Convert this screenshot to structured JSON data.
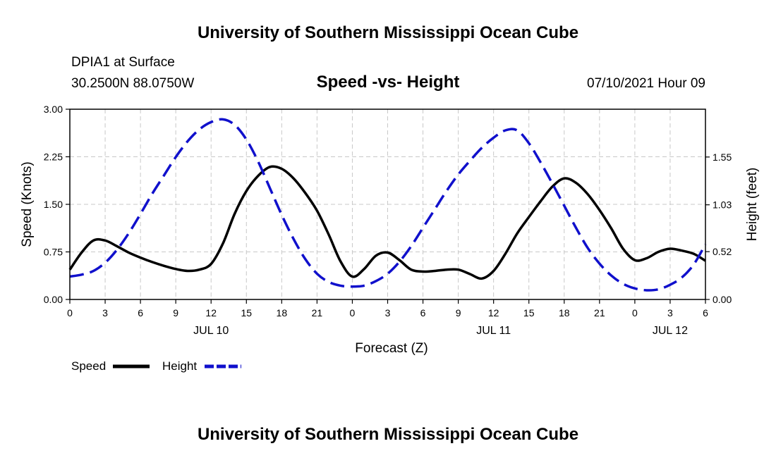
{
  "header": {
    "top_title": "University of Southern Mississippi Ocean Cube",
    "bottom_title": "University of Southern Mississippi Ocean Cube",
    "station": "DPIA1 at Surface",
    "coords": "30.2500N  88.0750W",
    "chart_title": "Speed -vs- Height",
    "datetime": "07/10/2021 Hour 09"
  },
  "chart_data": {
    "type": "line",
    "title": "Speed -vs- Height",
    "xlabel": "Forecast (Z)",
    "ylabel": "Speed (Knots)",
    "y2label": "Height (feet)",
    "xlim": [
      0,
      54
    ],
    "ylim": [
      0,
      3
    ],
    "y2lim": [
      0,
      2.07
    ],
    "x_ticks": [
      0,
      3,
      6,
      9,
      12,
      15,
      18,
      21,
      24,
      27,
      30,
      33,
      36,
      39,
      42,
      45,
      48,
      51,
      54
    ],
    "x_tick_labels": [
      "0",
      "3",
      "6",
      "9",
      "12",
      "15",
      "18",
      "21",
      "0",
      "3",
      "6",
      "9",
      "12",
      "15",
      "18",
      "21",
      "0",
      "3",
      "6"
    ],
    "y_ticks": [
      0,
      0.75,
      1.5,
      2.25,
      3.0
    ],
    "y_tick_labels": [
      "0.00",
      "0.75",
      "1.50",
      "2.25",
      "3.00"
    ],
    "y2_ticks": [
      0,
      0.52,
      1.03,
      1.55
    ],
    "y2_tick_labels": [
      "0.00",
      "0.52",
      "1.03",
      "1.55"
    ],
    "date_labels": [
      {
        "x": 12,
        "label": "JUL 10"
      },
      {
        "x": 36,
        "label": "JUL 11"
      },
      {
        "x": 51,
        "label": "JUL 12"
      }
    ],
    "grid": true,
    "legend": {
      "position": "bottom-left"
    },
    "series": [
      {
        "name": "Speed",
        "axis": "left",
        "color": "#000000",
        "style": "solid",
        "x": [
          0,
          1,
          2,
          3,
          4,
          5,
          6,
          7,
          8,
          9,
          10,
          11,
          12,
          13,
          14,
          15,
          16,
          17,
          18,
          19,
          20,
          21,
          22,
          23,
          24,
          25,
          26,
          27,
          28,
          29,
          30,
          31,
          32,
          33,
          34,
          35,
          36,
          37,
          38,
          39,
          40,
          41,
          42,
          43,
          44,
          45,
          46,
          47,
          48,
          49,
          50,
          51,
          52,
          53,
          54
        ],
        "values": [
          0.47,
          0.74,
          0.93,
          0.93,
          0.84,
          0.74,
          0.66,
          0.59,
          0.53,
          0.48,
          0.45,
          0.47,
          0.56,
          0.88,
          1.35,
          1.71,
          1.95,
          2.09,
          2.06,
          1.91,
          1.68,
          1.4,
          1.02,
          0.6,
          0.36,
          0.48,
          0.69,
          0.74,
          0.62,
          0.47,
          0.44,
          0.45,
          0.47,
          0.47,
          0.4,
          0.33,
          0.45,
          0.72,
          1.04,
          1.3,
          1.55,
          1.78,
          1.91,
          1.84,
          1.66,
          1.41,
          1.12,
          0.8,
          0.62,
          0.65,
          0.75,
          0.8,
          0.77,
          0.72,
          0.61
        ]
      },
      {
        "name": "Height",
        "axis": "right",
        "color": "#1010cc",
        "style": "dashed",
        "x": [
          0,
          1,
          2,
          3,
          4,
          5,
          6,
          7,
          8,
          9,
          10,
          11,
          12,
          13,
          14,
          15,
          16,
          17,
          18,
          19,
          20,
          21,
          22,
          23,
          24,
          25,
          26,
          27,
          28,
          29,
          30,
          31,
          32,
          33,
          34,
          35,
          36,
          37,
          38,
          39,
          40,
          41,
          42,
          43,
          44,
          45,
          46,
          47,
          48,
          49,
          50,
          51,
          52,
          53,
          54
        ],
        "values": [
          0.25,
          0.27,
          0.31,
          0.4,
          0.54,
          0.72,
          0.93,
          1.15,
          1.35,
          1.55,
          1.72,
          1.85,
          1.93,
          1.96,
          1.9,
          1.74,
          1.5,
          1.21,
          0.92,
          0.66,
          0.44,
          0.28,
          0.19,
          0.15,
          0.14,
          0.15,
          0.2,
          0.28,
          0.41,
          0.58,
          0.78,
          0.98,
          1.18,
          1.36,
          1.51,
          1.65,
          1.76,
          1.84,
          1.84,
          1.7,
          1.49,
          1.26,
          1.02,
          0.78,
          0.56,
          0.39,
          0.26,
          0.17,
          0.12,
          0.1,
          0.11,
          0.16,
          0.24,
          0.38,
          0.6
        ]
      }
    ]
  }
}
